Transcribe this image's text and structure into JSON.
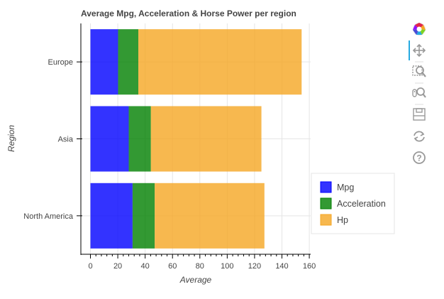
{
  "chart_data": {
    "type": "bar",
    "orientation": "horizontal",
    "stacked": true,
    "title": "Average Mpg, Acceleration & Horse Power per region",
    "xlabel": "Average",
    "ylabel": "Region",
    "categories": [
      "Europe",
      "Asia",
      "North America"
    ],
    "series": [
      {
        "name": "Mpg",
        "color": "#0000ff",
        "values": [
          20.2,
          28.0,
          30.8
        ]
      },
      {
        "name": "Acceleration",
        "color": "#008000",
        "values": [
          14.8,
          16.2,
          16.2
        ]
      },
      {
        "name": "Hp",
        "color": "#f5a623",
        "values": [
          119.4,
          80.8,
          80.2
        ]
      }
    ],
    "xlim": [
      -7,
      161
    ],
    "xticks": [
      0,
      20,
      40,
      60,
      80,
      100,
      120,
      140,
      160
    ],
    "grid": true,
    "legend_position": "right"
  },
  "toolbar": {
    "tools": [
      "bokeh-logo-icon",
      "pan-icon",
      "box-zoom-icon",
      "wheel-zoom-icon",
      "save-icon",
      "reset-icon",
      "help-icon"
    ]
  }
}
